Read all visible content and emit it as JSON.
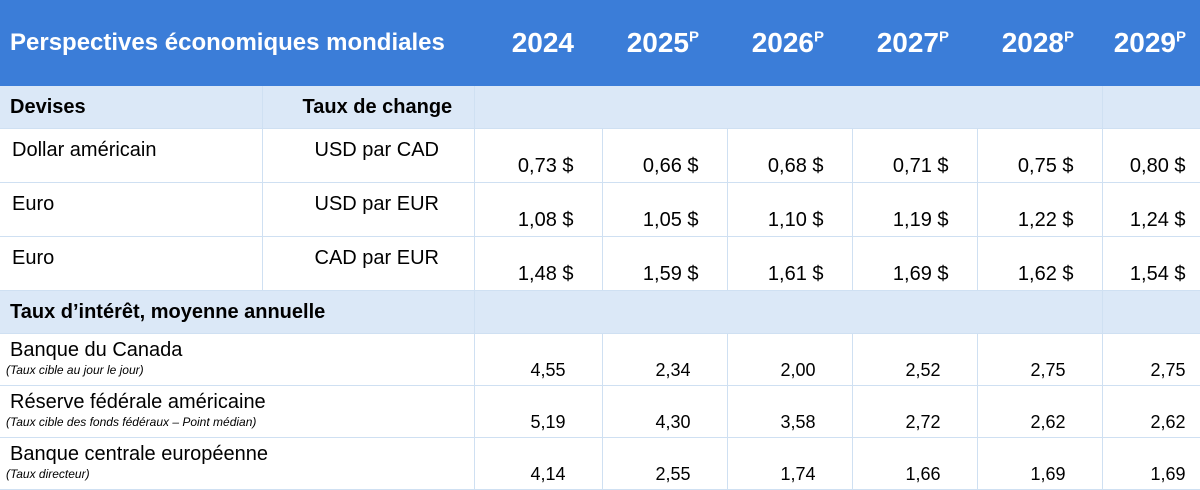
{
  "header": {
    "title": "Perspectives économiques mondiales",
    "years": [
      {
        "label": "2024",
        "mark": ""
      },
      {
        "label": "2025",
        "mark": "P"
      },
      {
        "label": "2026",
        "mark": "P"
      },
      {
        "label": "2027",
        "mark": "P"
      },
      {
        "label": "2028",
        "mark": "P"
      },
      {
        "label": "2029",
        "mark": "P"
      }
    ]
  },
  "fx_section": {
    "label": "Devises",
    "label2": "Taux de change"
  },
  "fx_rows": [
    {
      "name": "Dollar américain",
      "pair": "USD par CAD",
      "values": [
        "0,73 $",
        "0,66 $",
        "0,68 $",
        "0,71 $",
        "0,75 $",
        "0,80 $"
      ]
    },
    {
      "name": "Euro",
      "pair": "USD par EUR",
      "values": [
        "1,08 $",
        "1,05 $",
        "1,10 $",
        "1,19 $",
        "1,22 $",
        "1,24 $"
      ]
    },
    {
      "name": "Euro",
      "pair": "CAD par EUR",
      "values": [
        "1,48 $",
        "1,59 $",
        "1,61 $",
        "1,69 $",
        "1,62 $",
        "1,54 $"
      ]
    }
  ],
  "rates_section": {
    "label": "Taux d’intérêt, moyenne annuelle"
  },
  "rate_rows": [
    {
      "name": "Banque du Canada",
      "note": "(Taux cible au jour le jour)",
      "values": [
        "4,55",
        "2,34",
        "2,00",
        "2,52",
        "2,75",
        "2,75"
      ]
    },
    {
      "name": "Réserve fédérale américaine",
      "note": "(Taux cible des fonds fédéraux – Point médian)",
      "values": [
        "5,19",
        "4,30",
        "3,58",
        "2,72",
        "2,62",
        "2,62"
      ]
    },
    {
      "name": "Banque centrale européenne",
      "note": "(Taux directeur)",
      "values": [
        "4,14",
        "2,55",
        "1,74",
        "1,66",
        "1,69",
        "1,69"
      ]
    }
  ]
}
